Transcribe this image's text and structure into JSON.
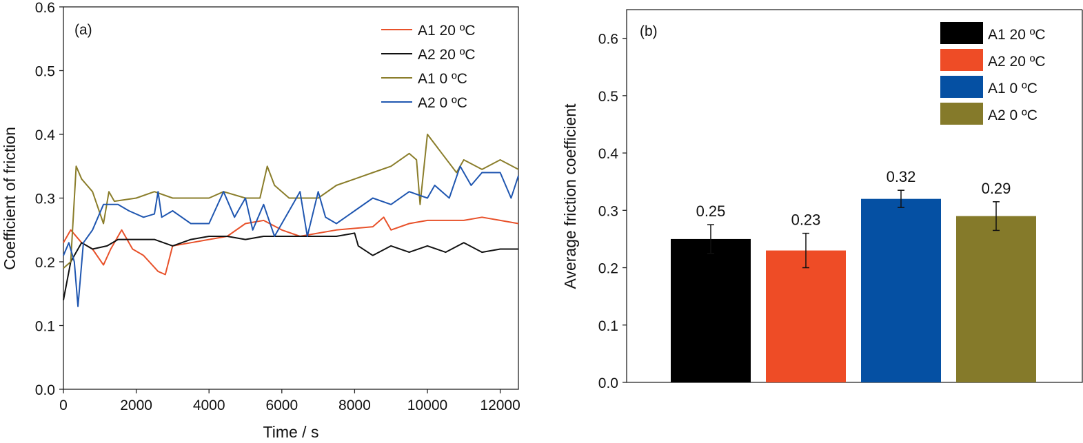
{
  "chart_data": [
    {
      "type": "line",
      "panel_label": "(a)",
      "xlabel": "Time / s",
      "ylabel": "Coefficient of friction",
      "xlim": [
        0,
        12500
      ],
      "ylim": [
        0,
        0.6
      ],
      "xticks": [
        "0",
        "2000",
        "4000",
        "6000",
        "8000",
        "10000",
        "12000"
      ],
      "yticks": [
        "0.0",
        "0.1",
        "0.2",
        "0.3",
        "0.4",
        "0.5",
        "0.6"
      ],
      "legend_position": "top-right",
      "series": [
        {
          "name": "A1 20 ºC",
          "color": "#e8512a",
          "x": [
            0,
            200,
            500,
            800,
            1100,
            1300,
            1600,
            1900,
            2200,
            2600,
            2800,
            3000,
            3500,
            4000,
            4500,
            5000,
            5500,
            6000,
            6500,
            7000,
            7500,
            8500,
            8800,
            9000,
            9500,
            10000,
            10500,
            11000,
            11500,
            12000,
            12500
          ],
          "y": [
            0.23,
            0.25,
            0.23,
            0.22,
            0.195,
            0.22,
            0.25,
            0.22,
            0.21,
            0.185,
            0.18,
            0.225,
            0.23,
            0.235,
            0.24,
            0.26,
            0.265,
            0.25,
            0.24,
            0.245,
            0.25,
            0.255,
            0.27,
            0.25,
            0.26,
            0.265,
            0.265,
            0.265,
            0.27,
            0.265,
            0.26
          ]
        },
        {
          "name": "A2 20 ºC",
          "color": "#111111",
          "x": [
            0,
            200,
            500,
            800,
            1200,
            1500,
            2000,
            2500,
            3000,
            3500,
            4000,
            4500,
            5000,
            5500,
            6000,
            6500,
            7000,
            7500,
            8000,
            8100,
            8500,
            9000,
            9500,
            10000,
            10500,
            11000,
            11500,
            12000,
            12500
          ],
          "y": [
            0.14,
            0.2,
            0.23,
            0.22,
            0.225,
            0.235,
            0.235,
            0.235,
            0.225,
            0.235,
            0.24,
            0.24,
            0.235,
            0.24,
            0.24,
            0.24,
            0.24,
            0.24,
            0.245,
            0.225,
            0.21,
            0.225,
            0.215,
            0.225,
            0.215,
            0.23,
            0.215,
            0.22,
            0.22
          ]
        },
        {
          "name": "A1 0 ºC",
          "color": "#8a7d2a",
          "x": [
            0,
            200,
            350,
            500,
            800,
            1100,
            1250,
            1400,
            2000,
            2500,
            3000,
            3500,
            4000,
            4400,
            5000,
            5400,
            5600,
            5800,
            6200,
            7000,
            7500,
            8000,
            8500,
            9000,
            9500,
            9700,
            9800,
            10000,
            10400,
            10800,
            11000,
            11500,
            12000,
            12500
          ],
          "y": [
            0.19,
            0.2,
            0.35,
            0.33,
            0.31,
            0.26,
            0.31,
            0.295,
            0.3,
            0.31,
            0.3,
            0.3,
            0.3,
            0.31,
            0.3,
            0.3,
            0.35,
            0.32,
            0.3,
            0.3,
            0.32,
            0.33,
            0.34,
            0.35,
            0.37,
            0.36,
            0.29,
            0.4,
            0.37,
            0.34,
            0.36,
            0.345,
            0.36,
            0.345
          ]
        },
        {
          "name": "A2 0 ºC",
          "color": "#1f56b0",
          "x": [
            0,
            150,
            300,
            400,
            550,
            800,
            1100,
            1500,
            1800,
            2200,
            2500,
            2600,
            2700,
            3000,
            3500,
            4000,
            4400,
            4700,
            5000,
            5200,
            5500,
            5800,
            6200,
            6500,
            6700,
            7000,
            7200,
            7500,
            8000,
            8500,
            9000,
            9500,
            10000,
            10200,
            10600,
            10900,
            11200,
            11500,
            12000,
            12300,
            12500
          ],
          "y": [
            0.21,
            0.23,
            0.2,
            0.13,
            0.23,
            0.25,
            0.29,
            0.29,
            0.28,
            0.27,
            0.275,
            0.31,
            0.27,
            0.28,
            0.26,
            0.26,
            0.31,
            0.27,
            0.3,
            0.25,
            0.29,
            0.24,
            0.28,
            0.31,
            0.24,
            0.31,
            0.27,
            0.26,
            0.28,
            0.3,
            0.29,
            0.31,
            0.3,
            0.32,
            0.3,
            0.35,
            0.32,
            0.34,
            0.34,
            0.3,
            0.335
          ]
        }
      ]
    },
    {
      "type": "bar",
      "panel_label": "(b)",
      "xlabel": "",
      "ylabel": "Average friction coefficient",
      "ylim": [
        0,
        0.65
      ],
      "yticks": [
        "0.0",
        "0.1",
        "0.2",
        "0.3",
        "0.4",
        "0.5",
        "0.6"
      ],
      "legend_position": "top-right",
      "categories": [
        "A1 20 ºC",
        "A2 20 ºC",
        "A1 0 ºC",
        "A2 0 ºC"
      ],
      "values": [
        0.25,
        0.23,
        0.32,
        0.29
      ],
      "value_labels": [
        "0.25",
        "0.23",
        "0.32",
        "0.29"
      ],
      "errors": [
        0.025,
        0.03,
        0.015,
        0.025
      ],
      "colors": [
        "#000000",
        "#ee4c26",
        "#0550a3",
        "#857a2a"
      ]
    }
  ]
}
